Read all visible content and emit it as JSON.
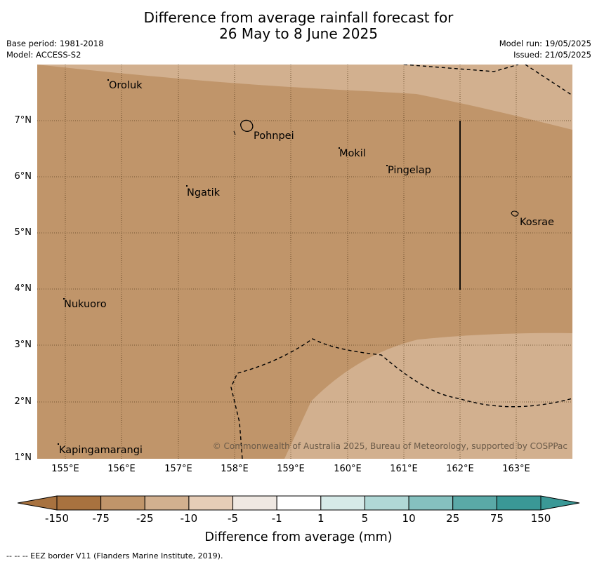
{
  "title_line1": "Difference from average rainfall forecast for",
  "title_line2": "26 May to 8 June 2025",
  "base_period": "Base period: 1981-2018",
  "model": "Model: ACCESS-S2",
  "model_run": "Model run: 19/05/2025",
  "issued": "Issued: 21/05/2025",
  "places": {
    "oroluk": "Oroluk",
    "pohnpei": "Pohnpei",
    "mokil": "Mokil",
    "pingelap": "Pingelap",
    "ngatik": "Ngatik",
    "kosrae": "Kosrae",
    "nukuoro": "Nukuoro",
    "kapingamarangi": "Kapingamarangi"
  },
  "copyright": "© Commonwealth of Australia 2025, Bureau of Meteorology, supported by COSPPac",
  "x_ticks": [
    "155°E",
    "156°E",
    "157°E",
    "158°E",
    "159°E",
    "160°E",
    "161°E",
    "162°E",
    "163°E"
  ],
  "y_ticks": [
    "7°N",
    "6°N",
    "5°N",
    "4°N",
    "3°N",
    "2°N",
    "1°N"
  ],
  "colorbar": {
    "ticks": [
      "-150",
      "-75",
      "-25",
      "-10",
      "-5",
      "-1",
      "1",
      "5",
      "10",
      "25",
      "75",
      "150"
    ],
    "colors": [
      "#a8723f",
      "#c0956a",
      "#d2b08f",
      "#e6cdb7",
      "#efe8e2",
      "#ffffff",
      "#d6eae8",
      "#b0d8d6",
      "#85c1bf",
      "#5aa9a7",
      "#3a9896"
    ],
    "label": "Difference from average (mm)"
  },
  "footnote": "--  --  -- EEZ border V11 (Flanders Marine Institute, 2019).",
  "colors": {
    "dry_medium": "#c0956a",
    "dry_light": "#d2b08f"
  }
}
